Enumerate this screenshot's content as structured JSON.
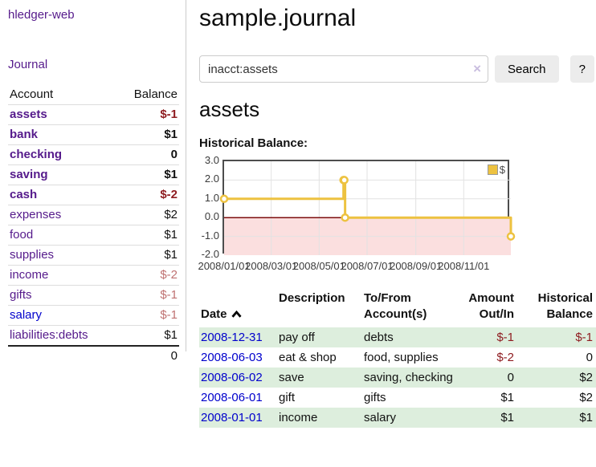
{
  "app": {
    "title": "hledger-web"
  },
  "sidebar": {
    "journal_link": "Journal",
    "table": {
      "account_header": "Account",
      "balance_header": "Balance",
      "accounts": [
        {
          "name": "assets",
          "indent": "lvl1",
          "link_class": "b",
          "balance": "$-1",
          "balance_class": "b neg"
        },
        {
          "name": "bank",
          "indent": "lvl2",
          "link_class": "b",
          "balance": "$1",
          "balance_class": "b"
        },
        {
          "name": "checking",
          "indent": "lvl3",
          "link_class": "b",
          "balance": "0",
          "balance_class": "b"
        },
        {
          "name": "saving",
          "indent": "lvl3",
          "link_class": "b",
          "balance": "$1",
          "balance_class": "b"
        },
        {
          "name": "cash",
          "indent": "lvl2",
          "link_class": "b",
          "balance": "$-2",
          "balance_class": "b neg"
        },
        {
          "name": "expenses",
          "indent": "lvl1",
          "link_class": "",
          "balance": "$2",
          "balance_class": ""
        },
        {
          "name": "food",
          "indent": "lvl2",
          "link_class": "",
          "balance": "$1",
          "balance_class": ""
        },
        {
          "name": "supplies",
          "indent": "lvl2",
          "link_class": "",
          "balance": "$1",
          "balance_class": ""
        },
        {
          "name": "income",
          "indent": "lvl1",
          "link_class": "",
          "balance": "$-2",
          "balance_class": "neg-light"
        },
        {
          "name": "gifts",
          "indent": "lvl2",
          "link_class": "",
          "balance": "$-1",
          "balance_class": "neg-light"
        },
        {
          "name": "salary",
          "indent": "lvl2",
          "link_class": "blue",
          "balance": "$-1",
          "balance_class": "neg-light"
        },
        {
          "name": "liabilities:debts",
          "indent": "lvl1",
          "link_class": "",
          "balance": "$1",
          "balance_class": ""
        }
      ],
      "total": "0"
    }
  },
  "header": {
    "title": "sample.journal"
  },
  "search": {
    "query": "inacct:assets",
    "clear_icon": "×",
    "search_label": "Search",
    "help_label": "?"
  },
  "account_page": {
    "title": "assets",
    "chart_label": "Historical Balance:"
  },
  "chart_data": {
    "type": "line",
    "title": "Historical Balance",
    "step": true,
    "series": [
      {
        "name": "$",
        "color": "#edc240",
        "points": [
          [
            "2008-01-01",
            1
          ],
          [
            "2008-06-01",
            2
          ],
          [
            "2008-06-02",
            2
          ],
          [
            "2008-06-03",
            0
          ],
          [
            "2008-12-31",
            -1
          ]
        ]
      }
    ],
    "x_range": [
      "2008-01-01",
      "2008-12-31"
    ],
    "ylim": [
      -2,
      3
    ],
    "yticks": [
      3,
      2,
      1,
      0,
      -1,
      -2
    ],
    "xticks": [
      {
        "label": "2008/01/01",
        "date": "2008-01-01"
      },
      {
        "label": "2008/03/01",
        "date": "2008-03-01"
      },
      {
        "label": "2008/05/01",
        "date": "2008-05-01"
      },
      {
        "label": "2008/07/01",
        "date": "2008-07-01"
      },
      {
        "label": "2008/09/01",
        "date": "2008-09-01"
      },
      {
        "label": "2008/11/01",
        "date": "2008-11-01"
      }
    ],
    "grid": true,
    "legend_position": "top-right",
    "negative_region_fill": "#fbdfdf",
    "zero_line_color": "#7d0f0f",
    "grid_color": "#e2e2e2"
  },
  "transactions": {
    "columns": [
      {
        "label": "Date"
      },
      {
        "label": "Description"
      },
      {
        "label": "To/From\nAccount(s)"
      },
      {
        "label": "Amount\nOut/In"
      },
      {
        "label": "Historical\nBalance"
      }
    ],
    "rows": [
      {
        "date": "2008-12-31",
        "description": "pay off",
        "accounts": "debts",
        "amount": "$-1",
        "amount_class": "neg",
        "balance": "$-1",
        "balance_class": "neg",
        "row_class": "alt"
      },
      {
        "date": "2008-06-03",
        "description": "eat & shop",
        "accounts": "food, supplies",
        "amount": "$-2",
        "amount_class": "neg",
        "balance": "0",
        "balance_class": "",
        "row_class": ""
      },
      {
        "date": "2008-06-02",
        "description": "save",
        "accounts": "saving, checking",
        "amount": "0",
        "amount_class": "",
        "balance": "$2",
        "balance_class": "",
        "row_class": "alt"
      },
      {
        "date": "2008-06-01",
        "description": "gift",
        "accounts": "gifts",
        "amount": "$1",
        "amount_class": "",
        "balance": "$2",
        "balance_class": "",
        "row_class": ""
      },
      {
        "date": "2008-01-01",
        "description": "income",
        "accounts": "salary",
        "amount": "$1",
        "amount_class": "",
        "balance": "$1",
        "balance_class": "",
        "row_class": "alt"
      }
    ]
  },
  "colors": {
    "link_purple": "#551a8b",
    "link_blue": "#0000cc",
    "negative_strong": "#8f1d21",
    "negative_light": "#bf7171",
    "row_green": "#ddeedd",
    "series_gold": "#edc240",
    "chart_negative_fill": "#fbdfdf",
    "chart_zero_line": "#7d0f0f",
    "chart_border": "#4d4d4d"
  }
}
